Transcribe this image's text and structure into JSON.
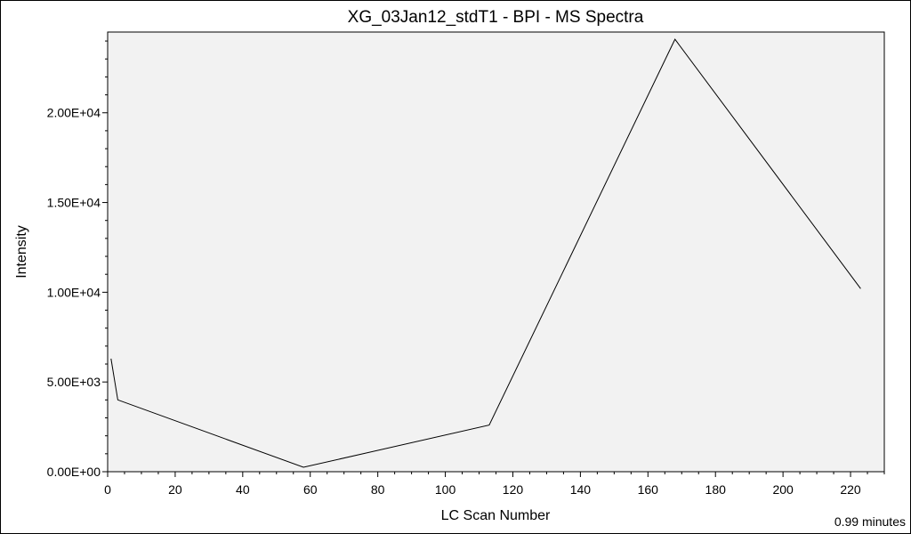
{
  "chart_data": {
    "type": "line",
    "title": "XG_03Jan12_stdT1 - BPI - MS Spectra",
    "xlabel": "LC Scan Number",
    "ylabel": "Intensity",
    "xlim": [
      0,
      230
    ],
    "ylim": [
      0,
      24500
    ],
    "x_ticks": [
      0,
      20,
      40,
      60,
      80,
      100,
      120,
      140,
      160,
      180,
      200,
      220
    ],
    "x_tick_labels": [
      "0",
      "20",
      "40",
      "60",
      "80",
      "100",
      "120",
      "140",
      "160",
      "180",
      "200",
      "220"
    ],
    "y_ticks": [
      0,
      5000,
      10000,
      15000,
      20000
    ],
    "y_tick_labels": [
      "0.00E+00",
      "5.00E+03",
      "1.00E+04",
      "1.50E+04",
      "2.00E+04"
    ],
    "grid": false,
    "background_color": "#f2f2f2",
    "line_color": "#000000",
    "series": [
      {
        "x": [
          1,
          3,
          58,
          113,
          168,
          223
        ],
        "y": [
          6300,
          4000,
          250,
          2600,
          24100,
          10200
        ]
      }
    ]
  },
  "footer": {
    "duration": "0.99 minutes"
  }
}
